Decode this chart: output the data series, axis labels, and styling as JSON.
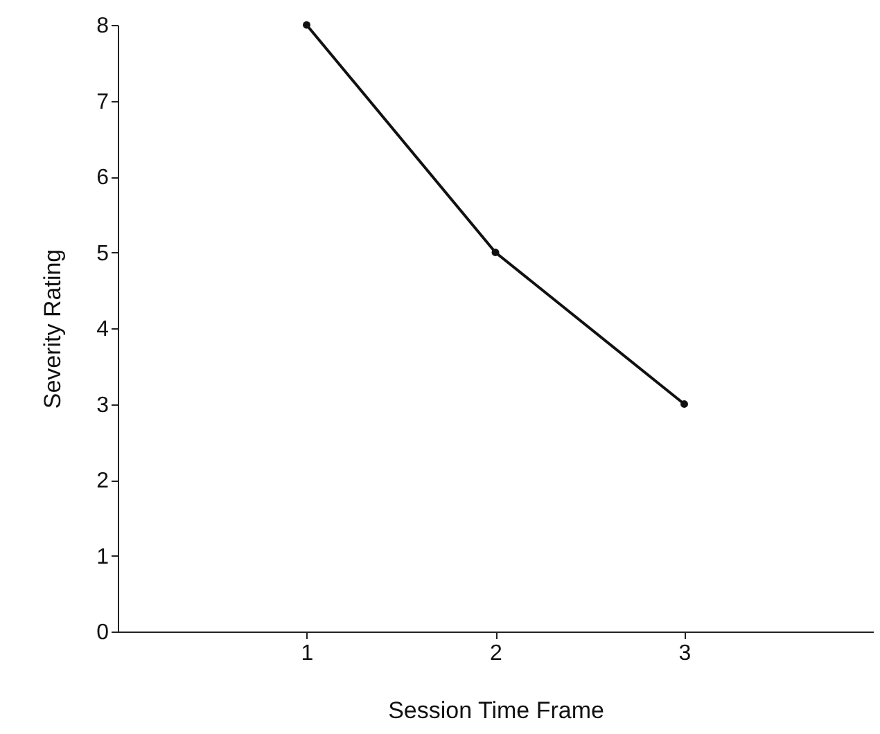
{
  "chart_data": {
    "type": "line",
    "xlabel": "Session Time Frame",
    "ylabel": "Severity Rating",
    "x": [
      1,
      2,
      3
    ],
    "series": [
      {
        "color": "#111111",
        "values": [
          8,
          5,
          3
        ]
      }
    ],
    "xlim": [
      0,
      4
    ],
    "xticks": [
      1,
      2,
      3
    ],
    "ylim": [
      0,
      8
    ],
    "yticks": [
      0,
      1,
      2,
      3,
      4,
      5,
      6,
      7,
      8
    ],
    "grid": false,
    "marker": "circle",
    "line_style": "solid"
  }
}
